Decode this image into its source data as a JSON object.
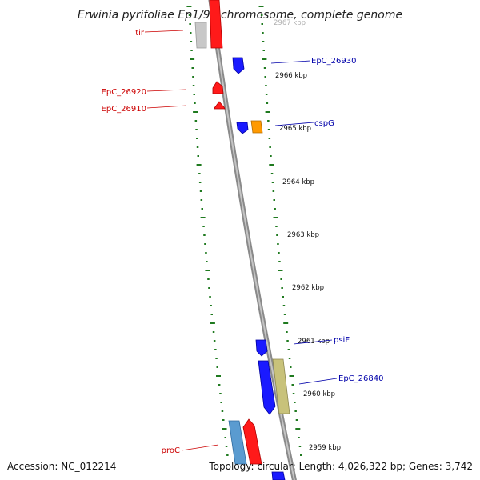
{
  "title": "Erwinia pyrifoliae Ep1/96 chromosome, complete genome",
  "footer": {
    "accession": "Accession: NC_012214",
    "topology": "Topology: circular; Length: 4,026,322 bp; Genes: 3,742"
  },
  "colors": {
    "backbone": "#8a8a8a",
    "tick": "#1f7a1f",
    "reverse_label": "#cc0000",
    "forward_label": "#0000aa",
    "gene_blue": "#1a1aff",
    "gene_red": "#ff1a1a",
    "gene_orange": "#ff9900",
    "gene_khaki": "#c8c27a",
    "gene_steel": "#5a9bd0",
    "gene_gray": "#c8c8c8"
  },
  "scale_labels": [
    "2967 kbp",
    "2966 kbp",
    "2965 kbp",
    "2964 kbp",
    "2963 kbp",
    "2962 kbp",
    "2961 kbp",
    "2960 kbp",
    "2959 kbp"
  ],
  "gene_labels": {
    "reverse": [
      "tir",
      "EpC_26920",
      "EpC_26910",
      "proC"
    ],
    "forward": [
      "EpC_26930",
      "cspG",
      "psiF",
      "EpC_26840"
    ]
  }
}
